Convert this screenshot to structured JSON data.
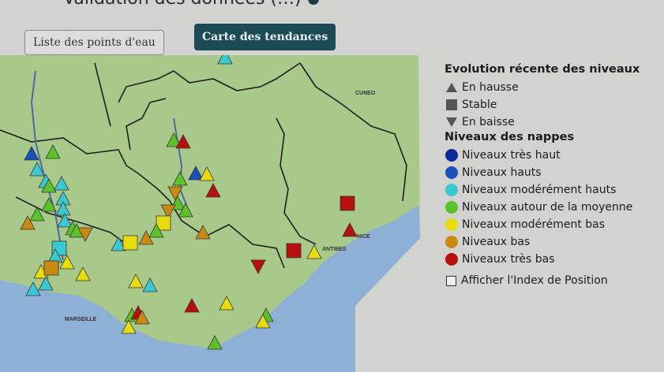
{
  "header": {
    "title": "Validation des données (…)"
  },
  "buttons": {
    "list": "Liste des points d'eau",
    "map": "Carte des tendances"
  },
  "map": {
    "labels": {
      "marseille": "MARSEILLE",
      "cuneo": "CUNEO",
      "antibes": "ANTIBES",
      "nice": "NICE"
    },
    "colors": {
      "land": "#a9c98a",
      "sea": "#8fb0d6",
      "border": "#1f1f1f"
    },
    "markers_note_levels": [
      "tres_haut",
      "hauts",
      "moderement_hauts",
      "moyenne",
      "moderement_bas",
      "bas",
      "tres_bas"
    ],
    "markers": [
      {
        "level": "hauts",
        "trend": "up"
      },
      {
        "level": "moyenne",
        "trend": "up"
      },
      {
        "level": "moderement_hauts",
        "trend": "up"
      },
      {
        "level": "moderement_hauts",
        "trend": "up"
      },
      {
        "level": "moyenne",
        "trend": "up"
      },
      {
        "level": "moderement_hauts",
        "trend": "up"
      },
      {
        "level": "moderement_hauts",
        "trend": "up"
      },
      {
        "level": "moyenne",
        "trend": "up"
      },
      {
        "level": "moderement_hauts",
        "trend": "up"
      },
      {
        "level": "moyenne",
        "trend": "up"
      },
      {
        "level": "bas",
        "trend": "up"
      },
      {
        "level": "moderement_hauts",
        "trend": "up"
      },
      {
        "level": "moyenne",
        "trend": "up"
      },
      {
        "level": "moyenne",
        "trend": "up"
      },
      {
        "level": "bas",
        "trend": "down"
      },
      {
        "level": "moderement_hauts",
        "trend": "stable"
      },
      {
        "level": "moderement_hauts",
        "trend": "up"
      },
      {
        "level": "moderement_bas",
        "trend": "up"
      },
      {
        "level": "bas",
        "trend": "stable"
      },
      {
        "level": "moderement_bas",
        "trend": "up"
      },
      {
        "level": "moderement_bas",
        "trend": "up"
      },
      {
        "level": "moderement_hauts",
        "trend": "up"
      },
      {
        "level": "moderement_hauts",
        "trend": "up"
      },
      {
        "level": "moyenne",
        "trend": "up"
      },
      {
        "level": "tres_bas",
        "trend": "up"
      },
      {
        "level": "hauts",
        "trend": "up"
      },
      {
        "level": "moderement_bas",
        "trend": "up"
      },
      {
        "level": "moyenne",
        "trend": "up"
      },
      {
        "level": "tres_bas",
        "trend": "up"
      },
      {
        "level": "bas",
        "trend": "down"
      },
      {
        "level": "moyenne",
        "trend": "up"
      },
      {
        "level": "moyenne",
        "trend": "up"
      },
      {
        "level": "bas",
        "trend": "down"
      },
      {
        "level": "moderement_bas",
        "trend": "stable"
      },
      {
        "level": "moyenne",
        "trend": "up"
      },
      {
        "level": "bas",
        "trend": "up"
      },
      {
        "level": "moderement_hauts",
        "trend": "up"
      },
      {
        "level": "moderement_bas",
        "trend": "stable"
      },
      {
        "level": "bas",
        "trend": "up"
      },
      {
        "level": "tres_bas",
        "trend": "stable"
      },
      {
        "level": "tres_bas",
        "trend": "up"
      },
      {
        "level": "tres_bas",
        "trend": "stable"
      },
      {
        "level": "moderement_bas",
        "trend": "up"
      },
      {
        "level": "tres_bas",
        "trend": "down"
      },
      {
        "level": "moderement_bas",
        "trend": "up"
      },
      {
        "level": "moderement_hauts",
        "trend": "up"
      },
      {
        "level": "tres_bas",
        "trend": "up"
      },
      {
        "level": "moderement_bas",
        "trend": "up"
      },
      {
        "level": "moyenne",
        "trend": "up"
      },
      {
        "level": "tres_bas",
        "trend": "up"
      },
      {
        "level": "bas",
        "trend": "up"
      },
      {
        "level": "moderement_bas",
        "trend": "up"
      },
      {
        "level": "moyenne",
        "trend": "up"
      },
      {
        "level": "moderement_bas",
        "trend": "up"
      },
      {
        "level": "moyenne",
        "trend": "up"
      },
      {
        "level": "moderement_hauts",
        "trend": "up"
      }
    ]
  },
  "legend": {
    "trend_title": "Evolution récente des niveaux",
    "trends": [
      {
        "key": "up",
        "label": "En hausse"
      },
      {
        "key": "stable",
        "label": "Stable"
      },
      {
        "key": "down",
        "label": "En baisse"
      }
    ],
    "levels_title": "Niveaux des nappes",
    "levels": [
      {
        "key": "tres_haut",
        "label": "Niveaux très haut",
        "color": "#0a2a9c"
      },
      {
        "key": "hauts",
        "label": "Niveaux hauts",
        "color": "#1551b8"
      },
      {
        "key": "moderement_hauts",
        "label": "Niveaux modérément hauts",
        "color": "#3cc8d0"
      },
      {
        "key": "moyenne",
        "label": "Niveaux autour de la moyenne",
        "color": "#5cc22a"
      },
      {
        "key": "moderement_bas",
        "label": "Niveaux modérément bas",
        "color": "#e6dc10"
      },
      {
        "key": "bas",
        "label": "Niveaux bas",
        "color": "#c98a12"
      },
      {
        "key": "tres_bas",
        "label": "Niveaux très bas",
        "color": "#b80f0f"
      }
    ],
    "checkbox_label": "Afficher l'Index de Position",
    "checkbox_checked": false
  }
}
